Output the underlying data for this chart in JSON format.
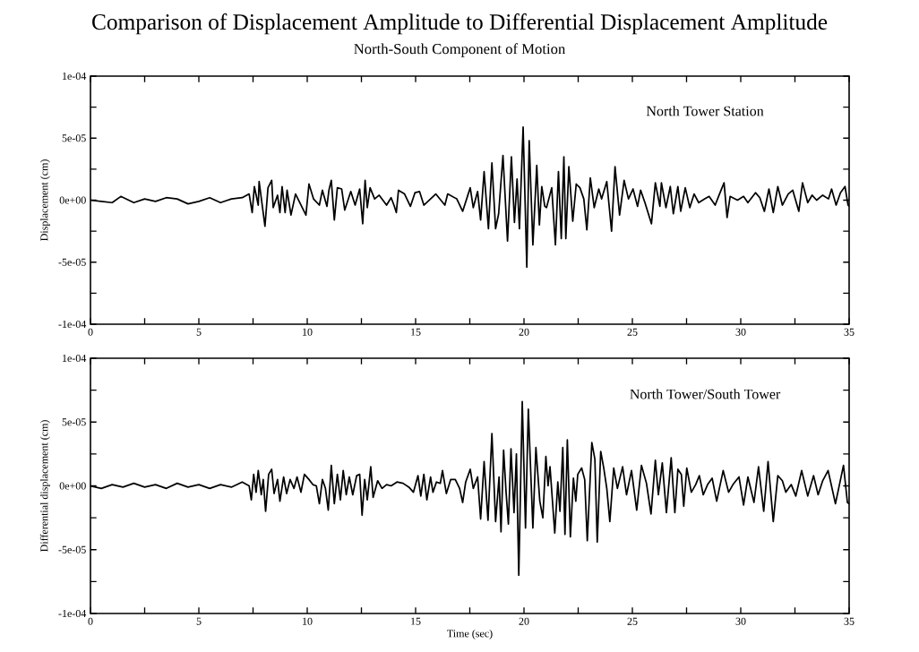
{
  "chart_data": [
    {
      "type": "line",
      "title": "Comparison of Displacement Amplitude to Differential Displacement Amplitude",
      "subtitle": "North-South Component of Motion",
      "ylabel": "Displacement (cm)",
      "xlim": [
        0,
        35
      ],
      "ylim": [
        -0.0001,
        0.0001
      ],
      "xticks": [
        0,
        {
          "value": 2.5,
          "label": null
        },
        5,
        {
          "value": 7.5,
          "label": null
        },
        10,
        {
          "value": 12.5,
          "label": null
        },
        15,
        {
          "value": 17.5,
          "label": null
        },
        20,
        {
          "value": 22.5,
          "label": null
        },
        25,
        {
          "value": 27.5,
          "label": null
        },
        30,
        {
          "value": 32.5,
          "label": null
        },
        35
      ],
      "yticks": [
        {
          "value": -0.0001,
          "label": "-1e-04"
        },
        {
          "value": -7.5e-05,
          "label": null
        },
        {
          "value": -5e-05,
          "label": "-5e-05"
        },
        {
          "value": -2.5e-05,
          "label": null
        },
        {
          "value": 0,
          "label": "0e+00"
        },
        {
          "value": 2.5e-05,
          "label": null
        },
        {
          "value": 5e-05,
          "label": "5e-05"
        },
        {
          "value": 7.5e-05,
          "label": null
        },
        {
          "value": 0.0001,
          "label": "1e-04"
        }
      ],
      "series": [
        {
          "name": "North Tower Station",
          "color": "#000000",
          "x": [
            0,
            0.5,
            1,
            1.4,
            2,
            2.5,
            3,
            3.5,
            4,
            4.5,
            5,
            5.5,
            6,
            6.5,
            7,
            7.32,
            7.46,
            7.56,
            7.74,
            7.78,
            8.05,
            8.19,
            8.36,
            8.43,
            8.63,
            8.74,
            8.84,
            8.98,
            9.07,
            9.25,
            9.46,
            9.94,
            10.08,
            10.29,
            10.56,
            10.7,
            10.91,
            11,
            11.11,
            11.25,
            11.39,
            11.59,
            11.73,
            12.01,
            12.21,
            12.42,
            12.56,
            12.67,
            12.77,
            12.9,
            13.11,
            13.32,
            13.66,
            13.87,
            14,
            14.11,
            14.21,
            14.49,
            14.76,
            14.97,
            15.18,
            15.38,
            15.93,
            16.35,
            16.48,
            16.9,
            17.17,
            17.52,
            17.66,
            17.86,
            18,
            18.16,
            18.36,
            18.52,
            18.69,
            18.83,
            19.03,
            19.24,
            19.42,
            19.56,
            19.68,
            19.79,
            19.96,
            20.13,
            20.24,
            20.41,
            20.59,
            20.71,
            20.82,
            20.96,
            21.04,
            21.28,
            21.45,
            21.59,
            21.72,
            21.84,
            21.93,
            22.07,
            22.25,
            22.41,
            22.58,
            22.76,
            22.9,
            23.06,
            23.24,
            23.45,
            23.58,
            23.82,
            24.04,
            24.2,
            24.41,
            24.62,
            24.82,
            25.03,
            25.24,
            25.38,
            25.58,
            25.88,
            26.06,
            26.27,
            26.34,
            26.55,
            26.75,
            26.89,
            27.1,
            27.23,
            27.44,
            27.65,
            27.85,
            28.06,
            28.34,
            28.54,
            28.82,
            29.02,
            29.23,
            29.37,
            29.51,
            29.85,
            30.13,
            30.33,
            30.68,
            30.88,
            31.09,
            31.3,
            31.5,
            31.71,
            31.92,
            32.19,
            32.4,
            32.68,
            32.85,
            33.09,
            33.29,
            33.5,
            33.78,
            34.05,
            34.19,
            34.4,
            34.6,
            34.81,
            34.95,
            35
          ],
          "values": [
            0.0,
            -1e-06,
            -2e-06,
            3e-06,
            -2e-06,
            1e-06,
            -1e-06,
            2e-06,
            1e-06,
            -3e-06,
            -1e-06,
            2e-06,
            -2e-06,
            1e-06,
            2e-06,
            5e-06,
            -1e-05,
            1.1e-05,
            -4e-06,
            1.5e-05,
            -2.1e-05,
            1e-05,
            1.6e-05,
            -6e-06,
            4e-06,
            -1e-05,
            1.1e-05,
            -1e-05,
            8e-06,
            -1.2e-05,
            5e-06,
            -1.2e-05,
            1.3e-05,
            1e-06,
            -4e-06,
            8e-06,
            -5e-06,
            8e-06,
            1.6e-05,
            -1.6e-05,
            1e-05,
            9e-06,
            -8e-06,
            7e-06,
            -4e-06,
            9e-06,
            -1.9e-05,
            1.6e-05,
            -6e-06,
            1e-05,
            1e-06,
            4e-06,
            -4e-06,
            2e-06,
            -4e-06,
            -1e-05,
            8e-06,
            5e-06,
            -5e-06,
            6e-06,
            7e-06,
            -4e-06,
            5e-06,
            -4e-06,
            5e-06,
            1e-06,
            -9e-06,
            1e-05,
            -6e-06,
            7e-06,
            -1.6e-05,
            2.3e-05,
            -2.3e-05,
            3e-05,
            -2.3e-05,
            -1.1e-05,
            3.6e-05,
            -3.3e-05,
            3.5e-05,
            -1.8e-05,
            1.7e-05,
            -2.3e-05,
            5.9e-05,
            -5.4e-05,
            4.8e-05,
            -3.6e-05,
            2.8e-05,
            -2e-05,
            1.1e-05,
            -5e-06,
            -6e-06,
            1e-05,
            -3.6e-05,
            2.3e-05,
            -3.1e-05,
            3.5e-05,
            -3.1e-05,
            2.7e-05,
            -1.7e-05,
            1.3e-05,
            1e-05,
            1e-06,
            -2.4e-05,
            1.8e-05,
            -6e-06,
            9e-06,
            1e-06,
            1.5e-05,
            -2.5e-05,
            2.7e-05,
            -1.2e-05,
            1.6e-05,
            1e-06,
            9e-06,
            -5e-06,
            8e-06,
            -2e-06,
            -1.9e-05,
            1.4e-05,
            -5e-06,
            1.4e-05,
            -6e-06,
            1.1e-05,
            -1.1e-05,
            1.1e-05,
            -9e-06,
            1e-05,
            -6e-06,
            5e-06,
            -2e-06,
            1e-06,
            3e-06,
            -4e-06,
            5e-06,
            1.4e-05,
            -1.4e-05,
            3e-06,
            0.0,
            3e-06,
            -2e-06,
            6e-06,
            2e-06,
            -9e-06,
            9e-06,
            -1e-05,
            1.1e-05,
            -4e-06,
            5e-06,
            8e-06,
            -9e-06,
            1.4e-05,
            -2e-06,
            4e-06,
            0.0,
            4e-06,
            1e-06,
            9e-06,
            -4e-06,
            6e-06,
            1.1e-05,
            -4e-06,
            -5e-06
          ]
        }
      ]
    },
    {
      "type": "line",
      "xlabel": "Time (sec)",
      "ylabel": "Differential displacement (cm)",
      "xlim": [
        0,
        35
      ],
      "ylim": [
        -0.0001,
        0.0001
      ],
      "xticks": [
        0,
        {
          "value": 2.5,
          "label": null
        },
        5,
        {
          "value": 7.5,
          "label": null
        },
        10,
        {
          "value": 12.5,
          "label": null
        },
        15,
        {
          "value": 17.5,
          "label": null
        },
        20,
        {
          "value": 22.5,
          "label": null
        },
        25,
        {
          "value": 27.5,
          "label": null
        },
        30,
        {
          "value": 32.5,
          "label": null
        },
        35
      ],
      "yticks": [
        {
          "value": -0.0001,
          "label": "-1e-04"
        },
        {
          "value": -7.5e-05,
          "label": null
        },
        {
          "value": -5e-05,
          "label": "-5e-05"
        },
        {
          "value": -2.5e-05,
          "label": null
        },
        {
          "value": 0,
          "label": "0e+00"
        },
        {
          "value": 2.5e-05,
          "label": null
        },
        {
          "value": 5e-05,
          "label": "5e-05"
        },
        {
          "value": 7.5e-05,
          "label": null
        },
        {
          "value": 0.0001,
          "label": "1e-04"
        }
      ],
      "series": [
        {
          "name": "North Tower/South Tower",
          "color": "#000000",
          "x": [
            0,
            0.5,
            1,
            1.5,
            2,
            2.5,
            3,
            3.5,
            4,
            4.5,
            5,
            5.5,
            6,
            6.5,
            7,
            7.32,
            7.42,
            7.53,
            7.64,
            7.74,
            7.88,
            7.97,
            8.08,
            8.22,
            8.36,
            8.47,
            8.63,
            8.74,
            8.91,
            9.05,
            9.21,
            9.39,
            9.53,
            9.71,
            9.87,
            10.08,
            10.26,
            10.42,
            10.56,
            10.7,
            10.84,
            10.97,
            11.11,
            11.25,
            11.39,
            11.53,
            11.66,
            11.8,
            11.94,
            12.1,
            12.28,
            12.42,
            12.53,
            12.65,
            12.77,
            12.93,
            13.04,
            13.25,
            13.45,
            13.66,
            13.87,
            14.14,
            14.42,
            14.69,
            14.9,
            15.11,
            15.24,
            15.38,
            15.52,
            15.69,
            15.8,
            15.96,
            16.14,
            16.24,
            16.42,
            16.62,
            16.83,
            17.03,
            17.17,
            17.31,
            17.52,
            17.66,
            17.86,
            18,
            18.16,
            18.34,
            18.52,
            18.69,
            18.85,
            18.94,
            19.06,
            19.17,
            19.28,
            19.4,
            19.54,
            19.65,
            19.76,
            19.92,
            20.07,
            20.2,
            20.41,
            20.55,
            20.73,
            20.87,
            21.01,
            21.11,
            21.2,
            21.31,
            21.42,
            21.56,
            21.66,
            21.79,
            21.89,
            22,
            22.14,
            22.28,
            22.39,
            22.48,
            22.66,
            22.8,
            22.92,
            23.13,
            23.27,
            23.38,
            23.54,
            23.68,
            23.82,
            23.96,
            24.14,
            24.31,
            24.55,
            24.73,
            24.96,
            25.2,
            25.42,
            25.65,
            25.86,
            26.06,
            26.2,
            26.38,
            26.57,
            26.79,
            26.96,
            27.1,
            27.26,
            27.37,
            27.51,
            27.72,
            27.92,
            28.09,
            28.27,
            28.47,
            28.68,
            28.89,
            29.19,
            29.44,
            29.64,
            29.92,
            30.13,
            30.33,
            30.61,
            30.82,
            31.06,
            31.26,
            31.5,
            31.71,
            31.92,
            32.08,
            32.33,
            32.54,
            32.81,
            33.09,
            33.36,
            33.57,
            33.78,
            34.03,
            34.37,
            34.74,
            34.92,
            35
          ],
          "values": [
            0.0,
            -2e-06,
            1e-06,
            -1e-06,
            2e-06,
            -1e-06,
            1e-06,
            -2e-06,
            2e-06,
            -1e-06,
            1e-06,
            -2e-06,
            1e-06,
            -1e-06,
            3e-06,
            0.0,
            -1.1e-05,
            9e-06,
            -5e-06,
            1.2e-05,
            -7e-06,
            5e-06,
            -2e-05,
            9e-06,
            1.3e-05,
            -6e-06,
            5e-06,
            -1.2e-05,
            7e-06,
            -6e-06,
            5e-06,
            -2e-06,
            7e-06,
            -5e-06,
            9e-06,
            5e-06,
            1e-06,
            0.0,
            -1.4e-05,
            5e-06,
            -2e-06,
            -1.9e-05,
            1.6e-05,
            -1.4e-05,
            9e-06,
            -1.1e-05,
            1.2e-05,
            -7e-06,
            7e-06,
            -7e-06,
            8e-06,
            9e-06,
            -2.3e-05,
            5e-06,
            -1.1e-05,
            1.5e-05,
            -9e-06,
            4e-06,
            -2e-06,
            1e-06,
            0.0,
            3e-06,
            2e-06,
            -1e-06,
            -5e-06,
            8e-06,
            -8e-06,
            9e-06,
            -1.1e-05,
            7e-06,
            -5e-06,
            3e-06,
            2e-06,
            1.2e-05,
            -6e-06,
            5e-06,
            5e-06,
            -2e-06,
            -1.3e-05,
            3e-06,
            1.3e-05,
            -2e-06,
            7e-06,
            -2.6e-05,
            1.9e-05,
            -2.7e-05,
            4.1e-05,
            -2.8e-05,
            7e-06,
            -3.6e-05,
            2.8e-05,
            -4e-06,
            -3e-05,
            2.9e-05,
            -2.1e-05,
            2.5e-05,
            -7e-05,
            6.6e-05,
            -3.3e-05,
            6e-05,
            -3.3e-05,
            3e-05,
            -1.2e-05,
            -2.5e-05,
            2.3e-05,
            0.0,
            1.5e-05,
            -1.1e-05,
            -3.7e-05,
            3e-06,
            -2e-05,
            3e-05,
            -3.8e-05,
            3.6e-05,
            -4e-05,
            6e-06,
            -1.2e-05,
            9e-06,
            1.4e-05,
            5e-06,
            -4.3e-05,
            3.4e-05,
            2.1e-05,
            -4.4e-05,
            2.7e-05,
            1.4e-05,
            -2e-06,
            -2.8e-05,
            1.4e-05,
            -2e-06,
            1.5e-05,
            -7e-06,
            1.2e-05,
            -1.9e-05,
            1.6e-05,
            2e-06,
            -2.2e-05,
            2e-05,
            -7e-06,
            1.8e-05,
            -2.1e-05,
            2.2e-05,
            -2.1e-05,
            1.3e-05,
            9e-06,
            -1.6e-05,
            1.4e-05,
            -5e-06,
            1e-06,
            8e-06,
            -7e-06,
            1e-06,
            6e-06,
            -1.2e-05,
            1.2e-05,
            -5e-06,
            1e-06,
            7e-06,
            -1.5e-05,
            7e-06,
            -1.3e-05,
            1.5e-05,
            -2e-05,
            1.9e-05,
            -2.8e-05,
            8e-06,
            4e-06,
            -5e-06,
            1e-06,
            -8e-06,
            1.2e-05,
            -8e-06,
            8e-06,
            -7e-06,
            4e-06,
            1.2e-05,
            -1.4e-05,
            1.6e-05,
            -1.3e-05,
            -1.4e-05
          ]
        }
      ]
    }
  ]
}
